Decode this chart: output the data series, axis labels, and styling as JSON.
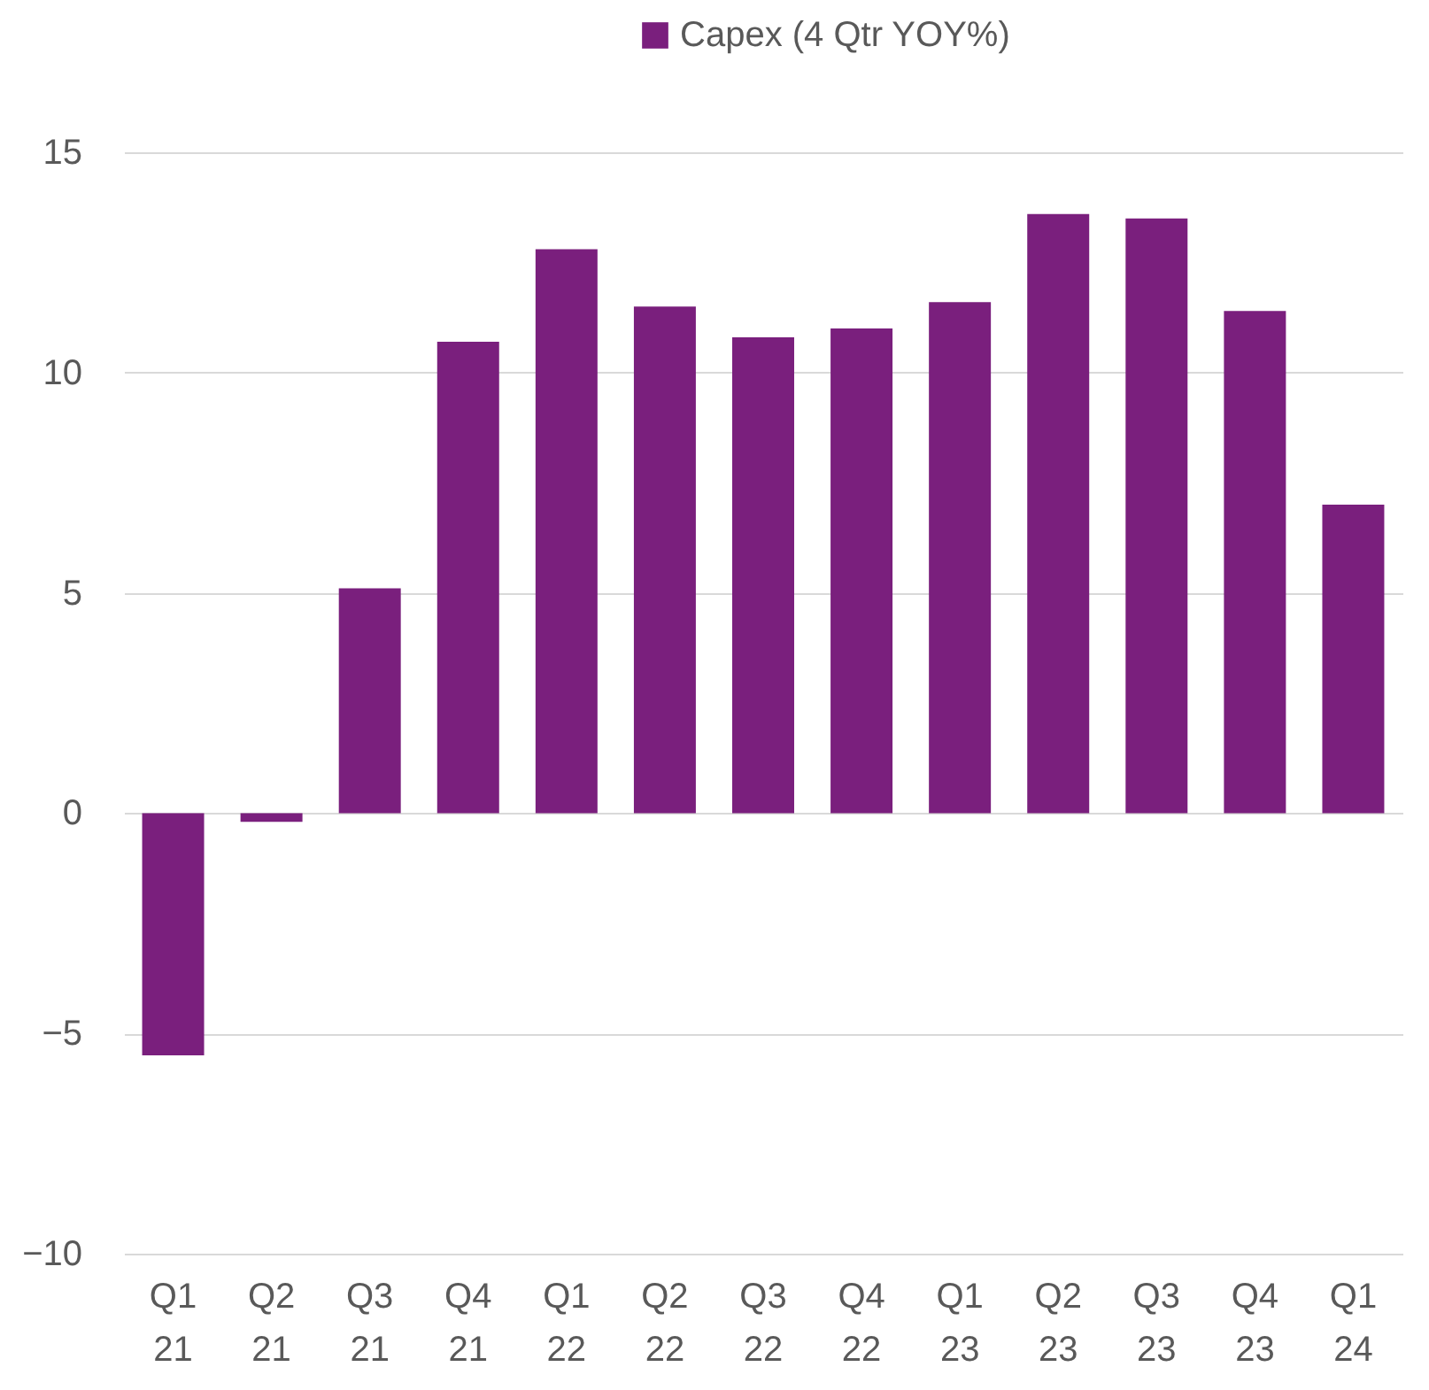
{
  "chart_data": {
    "type": "bar",
    "categories": [
      "Q1 21",
      "Q2 21",
      "Q3 21",
      "Q4 21",
      "Q1 22",
      "Q2 22",
      "Q3 22",
      "Q4 22",
      "Q1 23",
      "Q2 23",
      "Q3 23",
      "Q4 23",
      "Q1 24"
    ],
    "series": [
      {
        "name": "Capex (4 Qtr YOY%)",
        "color": "#7a1f7d",
        "values": [
          -5.5,
          -0.2,
          5.1,
          10.7,
          12.8,
          11.5,
          10.8,
          11.0,
          11.6,
          13.6,
          13.5,
          11.4,
          7.0
        ]
      }
    ],
    "ylim": [
      -10,
      15
    ],
    "yticks": [
      -10,
      -5,
      0,
      5,
      10,
      15
    ],
    "grid": "y",
    "legend": "top"
  }
}
